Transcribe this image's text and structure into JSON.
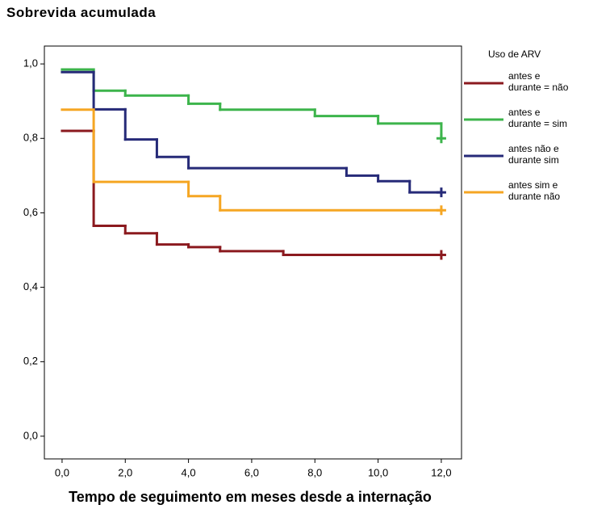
{
  "chart_data": {
    "type": "step",
    "title": "Sobrevida acumulada",
    "x_label": "Tempo de seguimento em meses desde a internação",
    "legend_title": "Uso de ARV",
    "legend": "right",
    "xlim": [
      -0.56,
      12.64
    ],
    "ylim": [
      -0.061,
      1.048
    ],
    "xticks": [
      {
        "value": 0,
        "label": "0,0"
      },
      {
        "value": 2,
        "label": "2,0"
      },
      {
        "value": 4,
        "label": "4,0"
      },
      {
        "value": 6,
        "label": "6,0"
      },
      {
        "value": 8,
        "label": "8,0"
      },
      {
        "value": 10,
        "label": "10,0"
      },
      {
        "value": 12,
        "label": "12,0"
      }
    ],
    "yticks": [
      {
        "value": 0,
        "label": "0,0"
      },
      {
        "value": 0.2,
        "label": "0,2"
      },
      {
        "value": 0.4,
        "label": "0,4"
      },
      {
        "value": 0.6,
        "label": "0,6"
      },
      {
        "value": 0.8,
        "label": "0,8"
      },
      {
        "value": 1,
        "label": "1,0"
      }
    ],
    "series": [
      {
        "name": "antes e durante = não",
        "color": "#8b1a1f",
        "x": [
          0,
          1,
          2,
          3,
          4,
          5,
          7,
          12
        ],
        "values": [
          0.82,
          0.565,
          0.545,
          0.515,
          0.508,
          0.497,
          0.487,
          0.487
        ]
      },
      {
        "name": "antes e durante = sim",
        "color": "#3cb44b",
        "x": [
          0,
          1,
          2,
          4,
          5,
          8,
          10,
          12
        ],
        "values": [
          0.985,
          0.928,
          0.915,
          0.893,
          0.877,
          0.86,
          0.84,
          0.8
        ]
      },
      {
        "name": "antes não e durante sim",
        "color": "#262a78",
        "x": [
          0,
          1,
          2,
          3,
          4,
          9,
          10,
          11,
          12
        ],
        "values": [
          0.978,
          0.878,
          0.797,
          0.75,
          0.72,
          0.7,
          0.685,
          0.655,
          0.655
        ]
      },
      {
        "name": "antes sim e durante não",
        "color": "#f5a623",
        "x": [
          0,
          1,
          4,
          5,
          12
        ],
        "values": [
          0.877,
          0.683,
          0.645,
          0.607,
          0.607
        ]
      }
    ]
  }
}
